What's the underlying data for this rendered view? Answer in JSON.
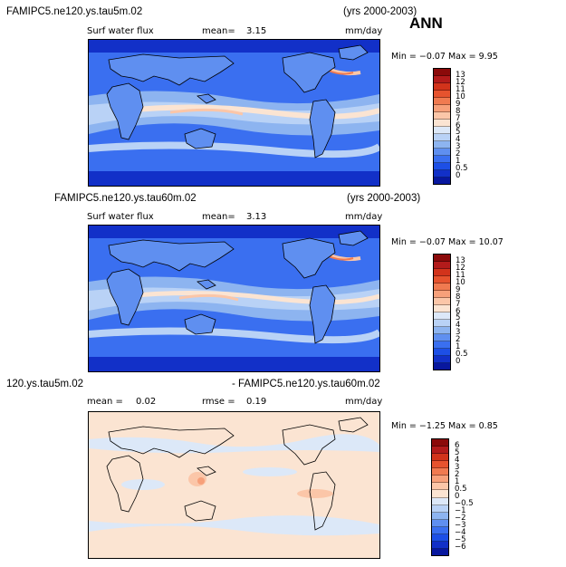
{
  "season": "ANN",
  "panels": [
    {
      "case": "FAMIPC5.ne120.ys.tau5m.02",
      "years": "(yrs 2000-2003)",
      "variable": "Surf water flux",
      "stat1_label": "mean=",
      "stat1_value": "3.15",
      "stat2_label": "",
      "stat2_value": "",
      "units": "mm/day",
      "minmax": "Min =  −0.07 Max =   9.95",
      "colorbar_labels": [
        "13",
        "12",
        "11",
        "10",
        "9",
        "8",
        "7",
        "6",
        "5",
        "4",
        "3",
        "2",
        "1",
        "0.5",
        "0"
      ],
      "colorbar_colors": [
        "#8b0a0a",
        "#b31b1b",
        "#d2331b",
        "#e6532e",
        "#f07a50",
        "#f7a07a",
        "#fbc6a8",
        "#fbe4d2",
        "#dce8f8",
        "#b9d2f6",
        "#8db4f0",
        "#5f8ff0",
        "#3a6ff0",
        "#1d4fe6",
        "#1230c8",
        "#08179e"
      ]
    },
    {
      "case": "FAMIPC5.ne120.ys.tau60m.02",
      "years": "(yrs 2000-2003)",
      "variable": "Surf water flux",
      "stat1_label": "mean=",
      "stat1_value": "3.13",
      "stat2_label": "",
      "stat2_value": "",
      "units": "mm/day",
      "minmax": "Min =  −0.07 Max =  10.07",
      "colorbar_labels": [
        "13",
        "12",
        "11",
        "10",
        "9",
        "8",
        "7",
        "6",
        "5",
        "4",
        "3",
        "2",
        "1",
        "0.5",
        "0"
      ],
      "colorbar_colors": [
        "#8b0a0a",
        "#b31b1b",
        "#d2331b",
        "#e6532e",
        "#f07a50",
        "#f7a07a",
        "#fbc6a8",
        "#fbe4d2",
        "#dce8f8",
        "#b9d2f6",
        "#8db4f0",
        "#5f8ff0",
        "#3a6ff0",
        "#1d4fe6",
        "#1230c8",
        "#08179e"
      ]
    },
    {
      "case_left": "120.ys.tau5m.02",
      "case_right": "- FAMIPC5.ne120.ys.tau60m.02",
      "stat1_label": "mean =",
      "stat1_value": "0.02",
      "stat2_label": "rmse =",
      "stat2_value": "0.19",
      "units": "mm/day",
      "minmax": "Min =  −1.25 Max =   0.85",
      "colorbar_labels": [
        "6",
        "5",
        "4",
        "3",
        "2",
        "1",
        "0.5",
        "0",
        "−0.5",
        "−1",
        "−2",
        "−3",
        "−4",
        "−5",
        "−6"
      ],
      "colorbar_colors": [
        "#8b0a0a",
        "#b31b1b",
        "#d2331b",
        "#e6532e",
        "#f07a50",
        "#f7a07a",
        "#fbc6a8",
        "#fbe4d2",
        "#dce8f8",
        "#b9d2f6",
        "#8db4f0",
        "#5f8ff0",
        "#3a6ff0",
        "#1d4fe6",
        "#1230c8",
        "#08179e"
      ]
    }
  ]
}
